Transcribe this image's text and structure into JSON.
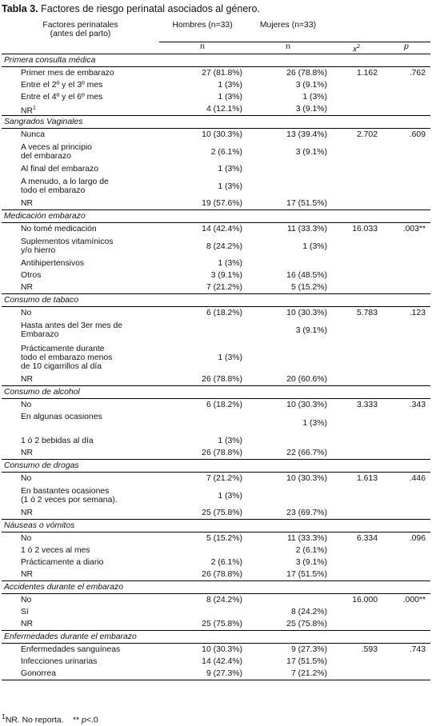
{
  "caption": {
    "label": "Tabla 3.",
    "title": "Factores de riesgo perinatal asociados al género."
  },
  "header": {
    "factor_line1": "Factores perinatales",
    "factor_line2": "(antes del parto)",
    "men": "Hombres (n=33)",
    "women": "Mujeres (n=33)",
    "n_men": "n",
    "n_women": "n",
    "chi": "x",
    "chi_sup": "2",
    "p": "p"
  },
  "sections": [
    {
      "title": "Primera consulta médica",
      "rows": [
        {
          "label": "Primer mes de embarazo",
          "men": "27 (81.8%)",
          "women": "26 (78.8%)",
          "chi": "1.162",
          "p": ".762"
        },
        {
          "label": "Entre el 2º y el 3º mes",
          "men": "1 (3%)",
          "women": "3 (9.1%)",
          "chi": "",
          "p": ""
        },
        {
          "label": "Entre el 4º y el 6º mes",
          "men": "1 (3%)",
          "women": "1 (3%)",
          "chi": "",
          "p": ""
        },
        {
          "label": "NR",
          "sup": "1",
          "men": "4 (12.1%)",
          "women": "3 (9.1%)",
          "chi": "",
          "p": ""
        }
      ]
    },
    {
      "title": "Sangrados Vaginales",
      "rows": [
        {
          "label": "Nunca",
          "men": "10 (30.3%)",
          "women": "13 (39.4%)",
          "chi": "2.702",
          "p": ".609"
        },
        {
          "label": "A veces al principio\ndel embarazo",
          "men": "2 (6.1%)",
          "women": "3 (9.1%)",
          "chi": "",
          "p": ""
        },
        {
          "label": "Al final del embarazo",
          "men": "1 (3%)",
          "women": "",
          "chi": "",
          "p": ""
        },
        {
          "label": "A menudo, a lo largo de\ntodo el embarazo",
          "men": "1 (3%)",
          "women": "",
          "chi": "",
          "p": ""
        },
        {
          "label": "NR",
          "men": "19 (57.6%)",
          "women": "17 (51.5%)",
          "chi": "",
          "p": ""
        }
      ]
    },
    {
      "title": "Medicación embarazo",
      "rows": [
        {
          "label": "No tomé medicación",
          "men": "14 (42.4%)",
          "women": "11 (33.3%)",
          "chi": "16.033",
          "p": ".003**"
        },
        {
          "label": "Suplementos vitamínicos\ny/o hierro",
          "men": "8 (24.2%)",
          "women": "1 (3%)",
          "chi": "",
          "p": ""
        },
        {
          "label": "Antihipertensivos",
          "men": "1 (3%)",
          "women": "",
          "chi": "",
          "p": ""
        },
        {
          "label": "Otros",
          "men": "3 (9.1%)",
          "women": "16 (48.5%)",
          "chi": "",
          "p": ""
        },
        {
          "label": "NR",
          "men": "7 (21.2%)",
          "women": "5 (15.2%)",
          "chi": "",
          "p": ""
        }
      ]
    },
    {
      "title": "Consumo de tabaco",
      "rows": [
        {
          "label": "No",
          "men": "6 (18.2%)",
          "women": "10 (30.3%)",
          "chi": "5.783",
          "p": ".123"
        },
        {
          "label": "Hasta antes del 3er mes de\nEmbarazo",
          "men": "",
          "women": "3 (9.1%)",
          "chi": "",
          "p": ""
        },
        {
          "label": "Prácticamente durante\ntodo el embarazo menos\nde 10 cigarrillos al día",
          "men": "1 (3%)",
          "women": "",
          "chi": "",
          "p": ""
        },
        {
          "label": "NR",
          "men": "26 (78.8%)",
          "women": "20 (60.6%)",
          "chi": "",
          "p": ""
        }
      ]
    },
    {
      "title": "Consumo de alcohol",
      "rows": [
        {
          "label": "No",
          "men": "6 (18.2%)",
          "women": "10 (30.3%)",
          "chi": "3.333",
          "p": ".343"
        },
        {
          "label": "En algunas ocasiones",
          "men": "",
          "women": "1 (3%)",
          "chi": "",
          "p": "",
          "top": true
        },
        {
          "label": "1 ó 2 bebidas al día",
          "men": "1 (3%)",
          "women": "",
          "chi": "",
          "p": ""
        },
        {
          "label": "NR",
          "men": "26 (78.8%)",
          "women": "22 (66.7%)",
          "chi": "",
          "p": ""
        }
      ]
    },
    {
      "title": "Consumo de drogas",
      "rows": [
        {
          "label": "No",
          "men": "7 (21.2%)",
          "women": "10 (30.3%)",
          "chi": "1.613",
          "p": ".446"
        },
        {
          "label": "En bastantes ocasiones\n(1 ó 2 veces por semana).",
          "men": "1 (3%)",
          "women": "",
          "chi": "",
          "p": ""
        },
        {
          "label": "NR",
          "men": "25 (75.8%)",
          "women": "23 (69.7%)",
          "chi": "",
          "p": ""
        }
      ]
    },
    {
      "title": "Náuseas o vómitos",
      "rows": [
        {
          "label": "No",
          "men": "5 (15.2%)",
          "women": "11 (33.3%)",
          "chi": "6.334",
          "p": ".096"
        },
        {
          "label": "1 ó 2 veces al mes",
          "men": "",
          "women": "2 (6.1%)",
          "chi": "",
          "p": ""
        },
        {
          "label": "Prácticamente a diario",
          "men": "2 (6.1%)",
          "women": "3 (9.1%)",
          "chi": "",
          "p": ""
        },
        {
          "label": "NR",
          "men": "26 (78.8%)",
          "women": "17 (51.5%)",
          "chi": "",
          "p": ""
        }
      ]
    },
    {
      "title": "Accidentes durante el embarazo",
      "rows": [
        {
          "label": "No",
          "men": "8 (24.2%)",
          "women": "",
          "chi": "16.000",
          "p": ".000**"
        },
        {
          "label": "Sí",
          "men": "",
          "women": "8 (24.2%)",
          "chi": "",
          "p": ""
        },
        {
          "label": "NR",
          "men": "25 (75.8%)",
          "women": "25 (75.8%)",
          "chi": "",
          "p": ""
        }
      ]
    },
    {
      "title": "Enfermedades durante el embarazo",
      "rows": [
        {
          "label": "Enfermedades sanguíneas",
          "men": "10 (30.3%)",
          "women": "9 (27.3%)",
          "chi": ".593",
          "p": ".743"
        },
        {
          "label": "Infecciones urinarias",
          "men": "14 (42.4%)",
          "women": "17 (51.5%)",
          "chi": "",
          "p": ""
        },
        {
          "label": "Gonorrea",
          "men": "9 (27.3%)",
          "women": "7 (21.2%)",
          "chi": "",
          "p": ""
        }
      ]
    }
  ],
  "footnote": {
    "sup": "1",
    "text": "NR. No reporta.",
    "sig": "** ",
    "p": "p",
    "threshold": "<.0"
  }
}
